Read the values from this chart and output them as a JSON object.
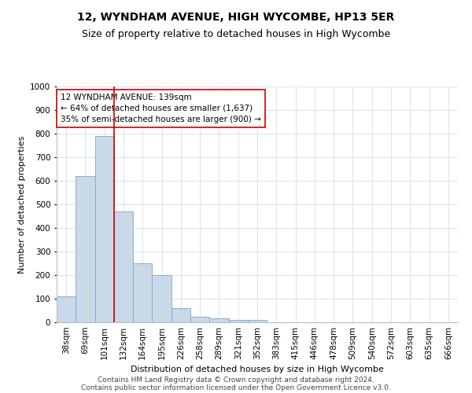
{
  "title": "12, WYNDHAM AVENUE, HIGH WYCOMBE, HP13 5ER",
  "subtitle": "Size of property relative to detached houses in High Wycombe",
  "xlabel": "Distribution of detached houses by size in High Wycombe",
  "ylabel": "Number of detached properties",
  "footnote1": "Contains HM Land Registry data © Crown copyright and database right 2024.",
  "footnote2": "Contains public sector information licensed under the Open Government Licence v3.0.",
  "categories": [
    "38sqm",
    "69sqm",
    "101sqm",
    "132sqm",
    "164sqm",
    "195sqm",
    "226sqm",
    "258sqm",
    "289sqm",
    "321sqm",
    "352sqm",
    "383sqm",
    "415sqm",
    "446sqm",
    "478sqm",
    "509sqm",
    "540sqm",
    "572sqm",
    "603sqm",
    "635sqm",
    "666sqm"
  ],
  "values": [
    110,
    620,
    790,
    470,
    250,
    200,
    60,
    25,
    17,
    10,
    10,
    0,
    0,
    0,
    0,
    0,
    0,
    0,
    0,
    0,
    0
  ],
  "bar_color": "#c9d9e8",
  "bar_edge_color": "#7aa8c8",
  "vline_color": "#cc0000",
  "vline_x_index": 2.5,
  "annotation_text_line1": "12 WYNDHAM AVENUE: 139sqm",
  "annotation_text_line2": "← 64% of detached houses are smaller (1,637)",
  "annotation_text_line3": "35% of semi-detached houses are larger (900) →",
  "ylim": [
    0,
    1000
  ],
  "yticks": [
    0,
    100,
    200,
    300,
    400,
    500,
    600,
    700,
    800,
    900,
    1000
  ],
  "background_color": "#ffffff",
  "grid_color": "#c8d8e8",
  "title_fontsize": 10,
  "subtitle_fontsize": 9,
  "axis_label_fontsize": 8,
  "tick_fontsize": 7.5,
  "annotation_fontsize": 7.5,
  "footnote_fontsize": 6.5
}
